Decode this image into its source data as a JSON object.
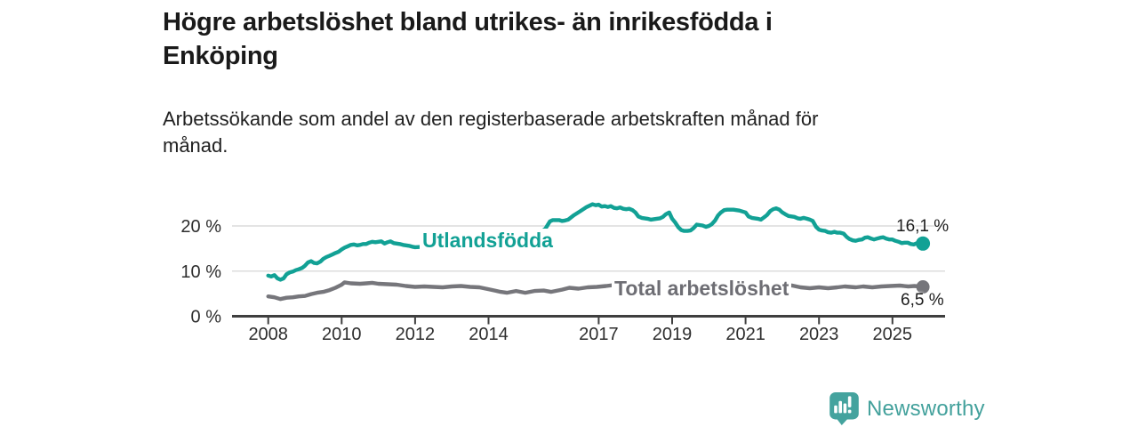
{
  "header": {
    "title_lines": [
      "Högre arbetslöshet bland utrikes- än inrikesfödda i",
      "Enköping"
    ],
    "subtitle_lines": [
      "Arbetssökande som andel av den registerbaserade arbetskraften månad för",
      "månad."
    ]
  },
  "chart_data": {
    "type": "line",
    "title": "Högre arbetslöshet bland utrikes- än inrikesfödda i Enköping",
    "subtitle": "Arbetssökande som andel av den registerbaserade arbetskraften månad för månad.",
    "unit": "%",
    "grid": "horizontal-only",
    "legend_position": "inline-labels",
    "x_ticks": [
      2008,
      2010,
      2012,
      2014,
      2017,
      2019,
      2021,
      2023,
      2025
    ],
    "y_ticks": [
      {
        "value": 0,
        "label": "0 %"
      },
      {
        "value": 10,
        "label": "10 %"
      },
      {
        "value": 20,
        "label": "20 %"
      }
    ],
    "xlim": [
      2008,
      2025.92
    ],
    "ylim": [
      0,
      27
    ],
    "series": [
      {
        "name": "Utlandsfödda",
        "color": "#12A195",
        "end_label": "16,1 %",
        "end_value": 16.1,
        "points": [
          [
            2008.0,
            9.0
          ],
          [
            2008.08,
            8.8
          ],
          [
            2008.17,
            9.1
          ],
          [
            2008.25,
            8.4
          ],
          [
            2008.33,
            8.1
          ],
          [
            2008.42,
            8.4
          ],
          [
            2008.5,
            9.3
          ],
          [
            2008.58,
            9.7
          ],
          [
            2008.67,
            9.9
          ],
          [
            2008.75,
            10.2
          ],
          [
            2008.83,
            10.4
          ],
          [
            2008.92,
            10.7
          ],
          [
            2009.0,
            11.2
          ],
          [
            2009.08,
            11.9
          ],
          [
            2009.17,
            12.2
          ],
          [
            2009.25,
            11.8
          ],
          [
            2009.33,
            11.7
          ],
          [
            2009.42,
            12.1
          ],
          [
            2009.5,
            12.7
          ],
          [
            2009.58,
            13.1
          ],
          [
            2009.67,
            13.4
          ],
          [
            2009.75,
            13.7
          ],
          [
            2009.83,
            14.0
          ],
          [
            2009.92,
            14.3
          ],
          [
            2010.0,
            14.8
          ],
          [
            2010.08,
            15.2
          ],
          [
            2010.17,
            15.5
          ],
          [
            2010.25,
            15.8
          ],
          [
            2010.33,
            15.9
          ],
          [
            2010.42,
            15.7
          ],
          [
            2010.5,
            15.8
          ],
          [
            2010.58,
            16.0
          ],
          [
            2010.67,
            16.0
          ],
          [
            2010.75,
            16.3
          ],
          [
            2010.83,
            16.5
          ],
          [
            2010.92,
            16.4
          ],
          [
            2011.0,
            16.5
          ],
          [
            2011.08,
            16.6
          ],
          [
            2011.17,
            16.1
          ],
          [
            2011.25,
            16.4
          ],
          [
            2011.33,
            16.6
          ],
          [
            2011.42,
            16.2
          ],
          [
            2011.5,
            16.1
          ],
          [
            2011.58,
            16.0
          ],
          [
            2011.67,
            15.8
          ],
          [
            2011.75,
            15.7
          ],
          [
            2011.83,
            15.6
          ],
          [
            2011.92,
            15.4
          ],
          [
            2012.0,
            15.3
          ],
          [
            2012.25,
            15.4
          ],
          [
            2012.5,
            15.2
          ],
          [
            2012.75,
            15.0
          ],
          [
            2013.0,
            15.0
          ],
          [
            2013.25,
            15.1
          ],
          [
            2013.5,
            15.2
          ],
          [
            2013.75,
            15.4
          ],
          [
            2014.0,
            15.7
          ],
          [
            2014.25,
            16.0
          ],
          [
            2014.5,
            16.4
          ],
          [
            2014.75,
            16.9
          ],
          [
            2015.0,
            17.4
          ],
          [
            2015.25,
            18.0
          ],
          [
            2015.42,
            18.6
          ],
          [
            2015.55,
            19.4
          ],
          [
            2015.67,
            21.0
          ],
          [
            2015.75,
            21.3
          ],
          [
            2015.92,
            21.3
          ],
          [
            2016.0,
            21.1
          ],
          [
            2016.08,
            21.2
          ],
          [
            2016.17,
            21.4
          ],
          [
            2016.33,
            22.4
          ],
          [
            2016.5,
            23.3
          ],
          [
            2016.67,
            24.2
          ],
          [
            2016.83,
            24.8
          ],
          [
            2016.92,
            24.6
          ],
          [
            2017.0,
            24.7
          ],
          [
            2017.08,
            24.3
          ],
          [
            2017.17,
            24.4
          ],
          [
            2017.25,
            24.2
          ],
          [
            2017.33,
            24.4
          ],
          [
            2017.42,
            24.0
          ],
          [
            2017.5,
            23.9
          ],
          [
            2017.58,
            24.1
          ],
          [
            2017.67,
            23.8
          ],
          [
            2017.75,
            23.7
          ],
          [
            2017.83,
            23.8
          ],
          [
            2017.92,
            23.5
          ],
          [
            2018.0,
            23.0
          ],
          [
            2018.08,
            22.1
          ],
          [
            2018.17,
            21.8
          ],
          [
            2018.25,
            21.7
          ],
          [
            2018.33,
            21.6
          ],
          [
            2018.42,
            21.4
          ],
          [
            2018.5,
            21.5
          ],
          [
            2018.58,
            21.6
          ],
          [
            2018.67,
            21.7
          ],
          [
            2018.75,
            22.0
          ],
          [
            2018.83,
            22.6
          ],
          [
            2018.92,
            23.0
          ],
          [
            2019.0,
            21.6
          ],
          [
            2019.08,
            20.8
          ],
          [
            2019.17,
            19.7
          ],
          [
            2019.25,
            19.1
          ],
          [
            2019.33,
            18.9
          ],
          [
            2019.42,
            18.9
          ],
          [
            2019.5,
            19.0
          ],
          [
            2019.58,
            19.5
          ],
          [
            2019.67,
            20.3
          ],
          [
            2019.75,
            20.2
          ],
          [
            2019.83,
            20.1
          ],
          [
            2019.92,
            19.8
          ],
          [
            2020.0,
            20.0
          ],
          [
            2020.08,
            20.4
          ],
          [
            2020.17,
            21.2
          ],
          [
            2020.25,
            22.3
          ],
          [
            2020.33,
            23.0
          ],
          [
            2020.42,
            23.5
          ],
          [
            2020.5,
            23.6
          ],
          [
            2020.67,
            23.6
          ],
          [
            2020.83,
            23.4
          ],
          [
            2020.92,
            23.2
          ],
          [
            2021.0,
            23.0
          ],
          [
            2021.08,
            22.1
          ],
          [
            2021.17,
            21.8
          ],
          [
            2021.25,
            21.7
          ],
          [
            2021.33,
            21.6
          ],
          [
            2021.42,
            21.4
          ],
          [
            2021.5,
            21.9
          ],
          [
            2021.58,
            22.4
          ],
          [
            2021.67,
            23.3
          ],
          [
            2021.75,
            23.7
          ],
          [
            2021.83,
            23.9
          ],
          [
            2021.92,
            23.6
          ],
          [
            2022.0,
            23.0
          ],
          [
            2022.08,
            22.6
          ],
          [
            2022.17,
            22.2
          ],
          [
            2022.25,
            22.1
          ],
          [
            2022.33,
            22.0
          ],
          [
            2022.42,
            21.7
          ],
          [
            2022.5,
            21.6
          ],
          [
            2022.58,
            21.8
          ],
          [
            2022.67,
            21.6
          ],
          [
            2022.75,
            21.4
          ],
          [
            2022.83,
            21.1
          ],
          [
            2022.92,
            19.8
          ],
          [
            2023.0,
            19.2
          ],
          [
            2023.08,
            19.0
          ],
          [
            2023.17,
            18.9
          ],
          [
            2023.25,
            18.6
          ],
          [
            2023.33,
            18.5
          ],
          [
            2023.42,
            18.7
          ],
          [
            2023.5,
            18.5
          ],
          [
            2023.58,
            18.5
          ],
          [
            2023.67,
            18.3
          ],
          [
            2023.75,
            17.6
          ],
          [
            2023.83,
            17.1
          ],
          [
            2023.92,
            16.8
          ],
          [
            2024.0,
            16.7
          ],
          [
            2024.08,
            16.9
          ],
          [
            2024.17,
            17.0
          ],
          [
            2024.25,
            17.4
          ],
          [
            2024.33,
            17.5
          ],
          [
            2024.42,
            17.2
          ],
          [
            2024.5,
            17.0
          ],
          [
            2024.58,
            17.2
          ],
          [
            2024.67,
            17.4
          ],
          [
            2024.75,
            17.5
          ],
          [
            2024.83,
            17.2
          ],
          [
            2024.92,
            17.0
          ],
          [
            2025.0,
            17.0
          ],
          [
            2025.08,
            16.7
          ],
          [
            2025.17,
            16.5
          ],
          [
            2025.25,
            16.2
          ],
          [
            2025.33,
            16.3
          ],
          [
            2025.42,
            16.3
          ],
          [
            2025.5,
            16.0
          ],
          [
            2025.58,
            15.9
          ],
          [
            2025.67,
            16.2
          ],
          [
            2025.75,
            16.1
          ],
          [
            2025.83,
            16.1
          ]
        ]
      },
      {
        "name": "Total arbetslöshet",
        "color": "#76767B",
        "end_label": "6,5 %",
        "end_value": 6.5,
        "points": [
          [
            2008.0,
            4.4
          ],
          [
            2008.17,
            4.2
          ],
          [
            2008.33,
            3.8
          ],
          [
            2008.5,
            4.1
          ],
          [
            2008.67,
            4.2
          ],
          [
            2008.83,
            4.4
          ],
          [
            2009.0,
            4.5
          ],
          [
            2009.17,
            4.9
          ],
          [
            2009.33,
            5.2
          ],
          [
            2009.5,
            5.4
          ],
          [
            2009.67,
            5.8
          ],
          [
            2009.83,
            6.3
          ],
          [
            2010.0,
            7.0
          ],
          [
            2010.08,
            7.5
          ],
          [
            2010.25,
            7.3
          ],
          [
            2010.5,
            7.2
          ],
          [
            2010.67,
            7.3
          ],
          [
            2010.83,
            7.4
          ],
          [
            2011.0,
            7.2
          ],
          [
            2011.25,
            7.1
          ],
          [
            2011.5,
            7.0
          ],
          [
            2011.75,
            6.7
          ],
          [
            2012.0,
            6.5
          ],
          [
            2012.25,
            6.6
          ],
          [
            2012.5,
            6.5
          ],
          [
            2012.75,
            6.4
          ],
          [
            2013.0,
            6.6
          ],
          [
            2013.25,
            6.7
          ],
          [
            2013.5,
            6.5
          ],
          [
            2013.75,
            6.4
          ],
          [
            2014.0,
            6.0
          ],
          [
            2014.17,
            5.7
          ],
          [
            2014.33,
            5.4
          ],
          [
            2014.5,
            5.2
          ],
          [
            2014.75,
            5.6
          ],
          [
            2015.0,
            5.2
          ],
          [
            2015.25,
            5.6
          ],
          [
            2015.5,
            5.7
          ],
          [
            2015.7,
            5.4
          ],
          [
            2016.0,
            5.9
          ],
          [
            2016.2,
            6.3
          ],
          [
            2016.45,
            6.1
          ],
          [
            2016.7,
            6.4
          ],
          [
            2016.95,
            6.5
          ],
          [
            2017.2,
            6.7
          ],
          [
            2017.4,
            6.9
          ],
          [
            2017.7,
            6.8
          ],
          [
            2018.0,
            6.6
          ],
          [
            2018.5,
            6.4
          ],
          [
            2019.0,
            6.3
          ],
          [
            2019.5,
            6.2
          ],
          [
            2020.0,
            6.5
          ],
          [
            2020.33,
            7.6
          ],
          [
            2020.58,
            7.9
          ],
          [
            2020.83,
            7.8
          ],
          [
            2021.0,
            7.6
          ],
          [
            2021.5,
            7.2
          ],
          [
            2022.0,
            7.0
          ],
          [
            2022.27,
            6.8
          ],
          [
            2022.5,
            6.4
          ],
          [
            2022.75,
            6.2
          ],
          [
            2023.0,
            6.4
          ],
          [
            2023.25,
            6.2
          ],
          [
            2023.5,
            6.4
          ],
          [
            2023.7,
            6.6
          ],
          [
            2024.0,
            6.4
          ],
          [
            2024.2,
            6.6
          ],
          [
            2024.45,
            6.4
          ],
          [
            2024.7,
            6.6
          ],
          [
            2024.94,
            6.7
          ],
          [
            2025.2,
            6.8
          ],
          [
            2025.43,
            6.6
          ],
          [
            2025.6,
            6.7
          ],
          [
            2025.83,
            6.5
          ]
        ]
      }
    ]
  },
  "branding": {
    "wordmark": "Newsworthy",
    "logo_icon": "newsworthy-bubble-barchart-icon",
    "color": "#44A39E"
  }
}
